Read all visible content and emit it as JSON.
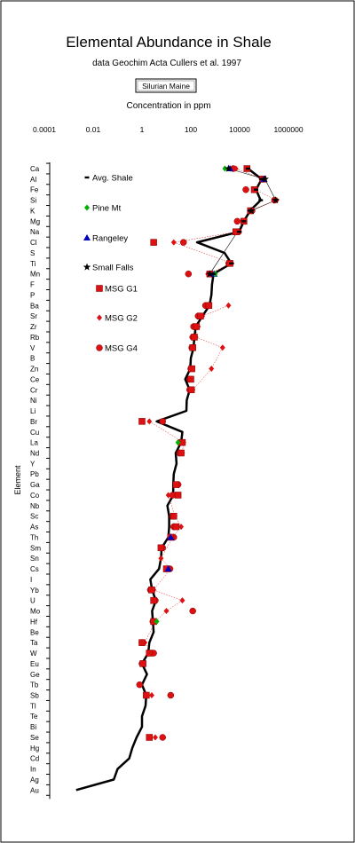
{
  "chart_data": {
    "type": "scatter",
    "title": "Elemental  Abundance in Shale",
    "subtitle": "data Geochim Acta Cullers et al. 1997",
    "button_label": "Silurian Maine",
    "xlabel": "Concentration in ppm",
    "ylabel": "Element",
    "x_scale": "log",
    "xlim": [
      0.0001,
      1000000
    ],
    "x_ticks": [
      0.0001,
      0.01,
      1,
      100,
      10000,
      1000000
    ],
    "x_tick_labels": [
      "0.0001",
      "0.01",
      "1",
      "100",
      "10000",
      "1000000"
    ],
    "grid": false,
    "legend_position": "left",
    "categories": [
      "Ca",
      "Al",
      "Fe",
      "Si",
      "K",
      "Mg",
      "Na",
      "Cl",
      "S",
      "Ti",
      "Mn",
      "F",
      "P",
      "Ba",
      "Sr",
      "Zr",
      "Rb",
      "V",
      "B",
      "Zn",
      "Ce",
      "Cr",
      "Ni",
      "Li",
      "Br",
      "Cu",
      "La",
      "Nd",
      "Y",
      "Pb",
      "Ga",
      "Co",
      "Nb",
      "Sc",
      "As",
      "Th",
      "Sm",
      "Sn",
      "Cs",
      "I",
      "Yb",
      "U",
      "Mo",
      "Hf",
      "Be",
      "Ta",
      "W",
      "Eu",
      "Ge",
      "Tb",
      "Sb",
      "Tl",
      "Te",
      "Bi",
      "Se",
      "Hg",
      "Cd",
      "In",
      "Ag",
      "Au"
    ],
    "avg_shale_line": [
      22100,
      80000,
      47200,
      73000,
      26600,
      15000,
      9600,
      180,
      2400,
      4600,
      850,
      740,
      700,
      580,
      300,
      160,
      140,
      130,
      100,
      95,
      59,
      90,
      68,
      66,
      4,
      45,
      40,
      24,
      26,
      20,
      19,
      19,
      11,
      13,
      13,
      12,
      6.4,
      6,
      5,
      2.2,
      2.6,
      3.7,
      2.6,
      2.8,
      3,
      2,
      1.8,
      1,
      1.6,
      1,
      1.5,
      1.4,
      1,
      1,
      0.6,
      0.4,
      0.3,
      0.1,
      0.07,
      0.002
    ],
    "series": [
      {
        "name": "Avg. Shale",
        "marker": "dash",
        "color": "#000000",
        "points": [
          [
            "Ca",
            22100
          ],
          [
            "Al",
            80000
          ],
          [
            "Fe",
            47200
          ],
          [
            "Si",
            73000
          ],
          [
            "K",
            26600
          ],
          [
            "Mg",
            15000
          ],
          [
            "Na",
            9600
          ],
          [
            "Ti",
            4600
          ],
          [
            "Mn",
            850
          ]
        ]
      },
      {
        "name": "Pine Mt",
        "marker": "diamond",
        "color": "#00b000",
        "points": [
          [
            "Ca",
            2500
          ],
          [
            "Mn",
            1000
          ],
          [
            "La",
            30
          ],
          [
            "Hf",
            4
          ]
        ]
      },
      {
        "name": "Rangeley",
        "marker": "triangle",
        "color": "#0000c0",
        "points": [
          [
            "Ca",
            4000
          ],
          [
            "Al",
            100000
          ],
          [
            "Mn",
            900
          ],
          [
            "Cs",
            12
          ],
          [
            "Th",
            15
          ]
        ]
      },
      {
        "name": "Small Falls",
        "marker": "star",
        "color": "#000000",
        "points": [
          [
            "Ca",
            3500
          ],
          [
            "Al",
            110000
          ],
          [
            "Si",
            300000
          ],
          [
            "K",
            30000
          ],
          [
            "Mn",
            600
          ]
        ]
      },
      {
        "name": "MSG G1",
        "marker": "square",
        "color": "#dd1111",
        "points": [
          [
            "Ca",
            20000
          ],
          [
            "Al",
            90000
          ],
          [
            "Fe",
            40000
          ],
          [
            "K",
            28000
          ],
          [
            "Mg",
            15000
          ],
          [
            "Na",
            7000
          ],
          [
            "Cl",
            3
          ],
          [
            "Ti",
            4000
          ],
          [
            "Mn",
            600
          ],
          [
            "Ba",
            550
          ],
          [
            "Sr",
            250
          ],
          [
            "Zr",
            170
          ],
          [
            "Rb",
            140
          ],
          [
            "V",
            120
          ],
          [
            "Zn",
            110
          ],
          [
            "Ce",
            100
          ],
          [
            "Cr",
            105
          ],
          [
            "Br",
            1
          ],
          [
            "La",
            45
          ],
          [
            "Nd",
            40
          ],
          [
            "Ga",
            25
          ],
          [
            "Co",
            30
          ],
          [
            "Sc",
            20
          ],
          [
            "As",
            25
          ],
          [
            "Th",
            15
          ],
          [
            "Sm",
            6
          ],
          [
            "Cs",
            10
          ],
          [
            "Yb",
            2.5
          ],
          [
            "U",
            3
          ],
          [
            "Hf",
            3
          ],
          [
            "Ta",
            1
          ],
          [
            "W",
            2
          ],
          [
            "Eu",
            1.1
          ],
          [
            "Sb",
            1.5
          ],
          [
            "Se",
            2
          ]
        ]
      },
      {
        "name": "MSG G2",
        "marker": "diamond",
        "color": "#dd1111",
        "points": [
          [
            "Ca",
            7000
          ],
          [
            "Al",
            95000
          ],
          [
            "Fe",
            42000
          ],
          [
            "Si",
            330000
          ],
          [
            "K",
            25000
          ],
          [
            "Mg",
            13000
          ],
          [
            "Na",
            8000
          ],
          [
            "Cl",
            20
          ],
          [
            "Ti",
            4800
          ],
          [
            "Mn",
            500
          ],
          [
            "Ba",
            3500
          ],
          [
            "Sr",
            300
          ],
          [
            "Zr",
            200
          ],
          [
            "Rb",
            160
          ],
          [
            "V",
            2000
          ],
          [
            "Zn",
            700
          ],
          [
            "Cr",
            120
          ],
          [
            "Br",
            2
          ],
          [
            "La",
            50
          ],
          [
            "Nd",
            45
          ],
          [
            "Co",
            12
          ],
          [
            "Sc",
            22
          ],
          [
            "As",
            40
          ],
          [
            "Th",
            18
          ],
          [
            "Sn",
            6
          ],
          [
            "Cs",
            15
          ],
          [
            "Yb",
            3
          ],
          [
            "U",
            45
          ],
          [
            "Mo",
            10
          ],
          [
            "Hf",
            3.5
          ],
          [
            "Ta",
            1.3
          ],
          [
            "W",
            2.5
          ],
          [
            "Sb",
            2.5
          ],
          [
            "Se",
            3.5
          ]
        ]
      },
      {
        "name": "MSG G4",
        "marker": "circle",
        "color": "#dd1111",
        "points": [
          [
            "Ca",
            5500
          ],
          [
            "Al",
            85000
          ],
          [
            "Fe",
            18000
          ],
          [
            "Si",
            270000
          ],
          [
            "K",
            32000
          ],
          [
            "Mg",
            8000
          ],
          [
            "Na",
            9000
          ],
          [
            "Cl",
            50
          ],
          [
            "Ti",
            3600
          ],
          [
            "Mn",
            80
          ],
          [
            "Ba",
            400
          ],
          [
            "Sr",
            200
          ],
          [
            "Zr",
            130
          ],
          [
            "Rb",
            120
          ],
          [
            "V",
            110
          ],
          [
            "Zn",
            100
          ],
          [
            "Ce",
            90
          ],
          [
            "Cr",
            90
          ],
          [
            "Br",
            7
          ],
          [
            "La",
            35
          ],
          [
            "Nd",
            35
          ],
          [
            "Ga",
            30
          ],
          [
            "Co",
            18
          ],
          [
            "Sc",
            18
          ],
          [
            "As",
            20
          ],
          [
            "Th",
            20
          ],
          [
            "Sm",
            7
          ],
          [
            "Cs",
            14
          ],
          [
            "Yb",
            2.2
          ],
          [
            "U",
            3.5
          ],
          [
            "Mo",
            120
          ],
          [
            "Hf",
            2.8
          ],
          [
            "Ta",
            1
          ],
          [
            "W",
            3
          ],
          [
            "Eu",
            1
          ],
          [
            "Tb",
            0.8
          ],
          [
            "Sb",
            15
          ],
          [
            "Se",
            7
          ]
        ]
      }
    ]
  }
}
